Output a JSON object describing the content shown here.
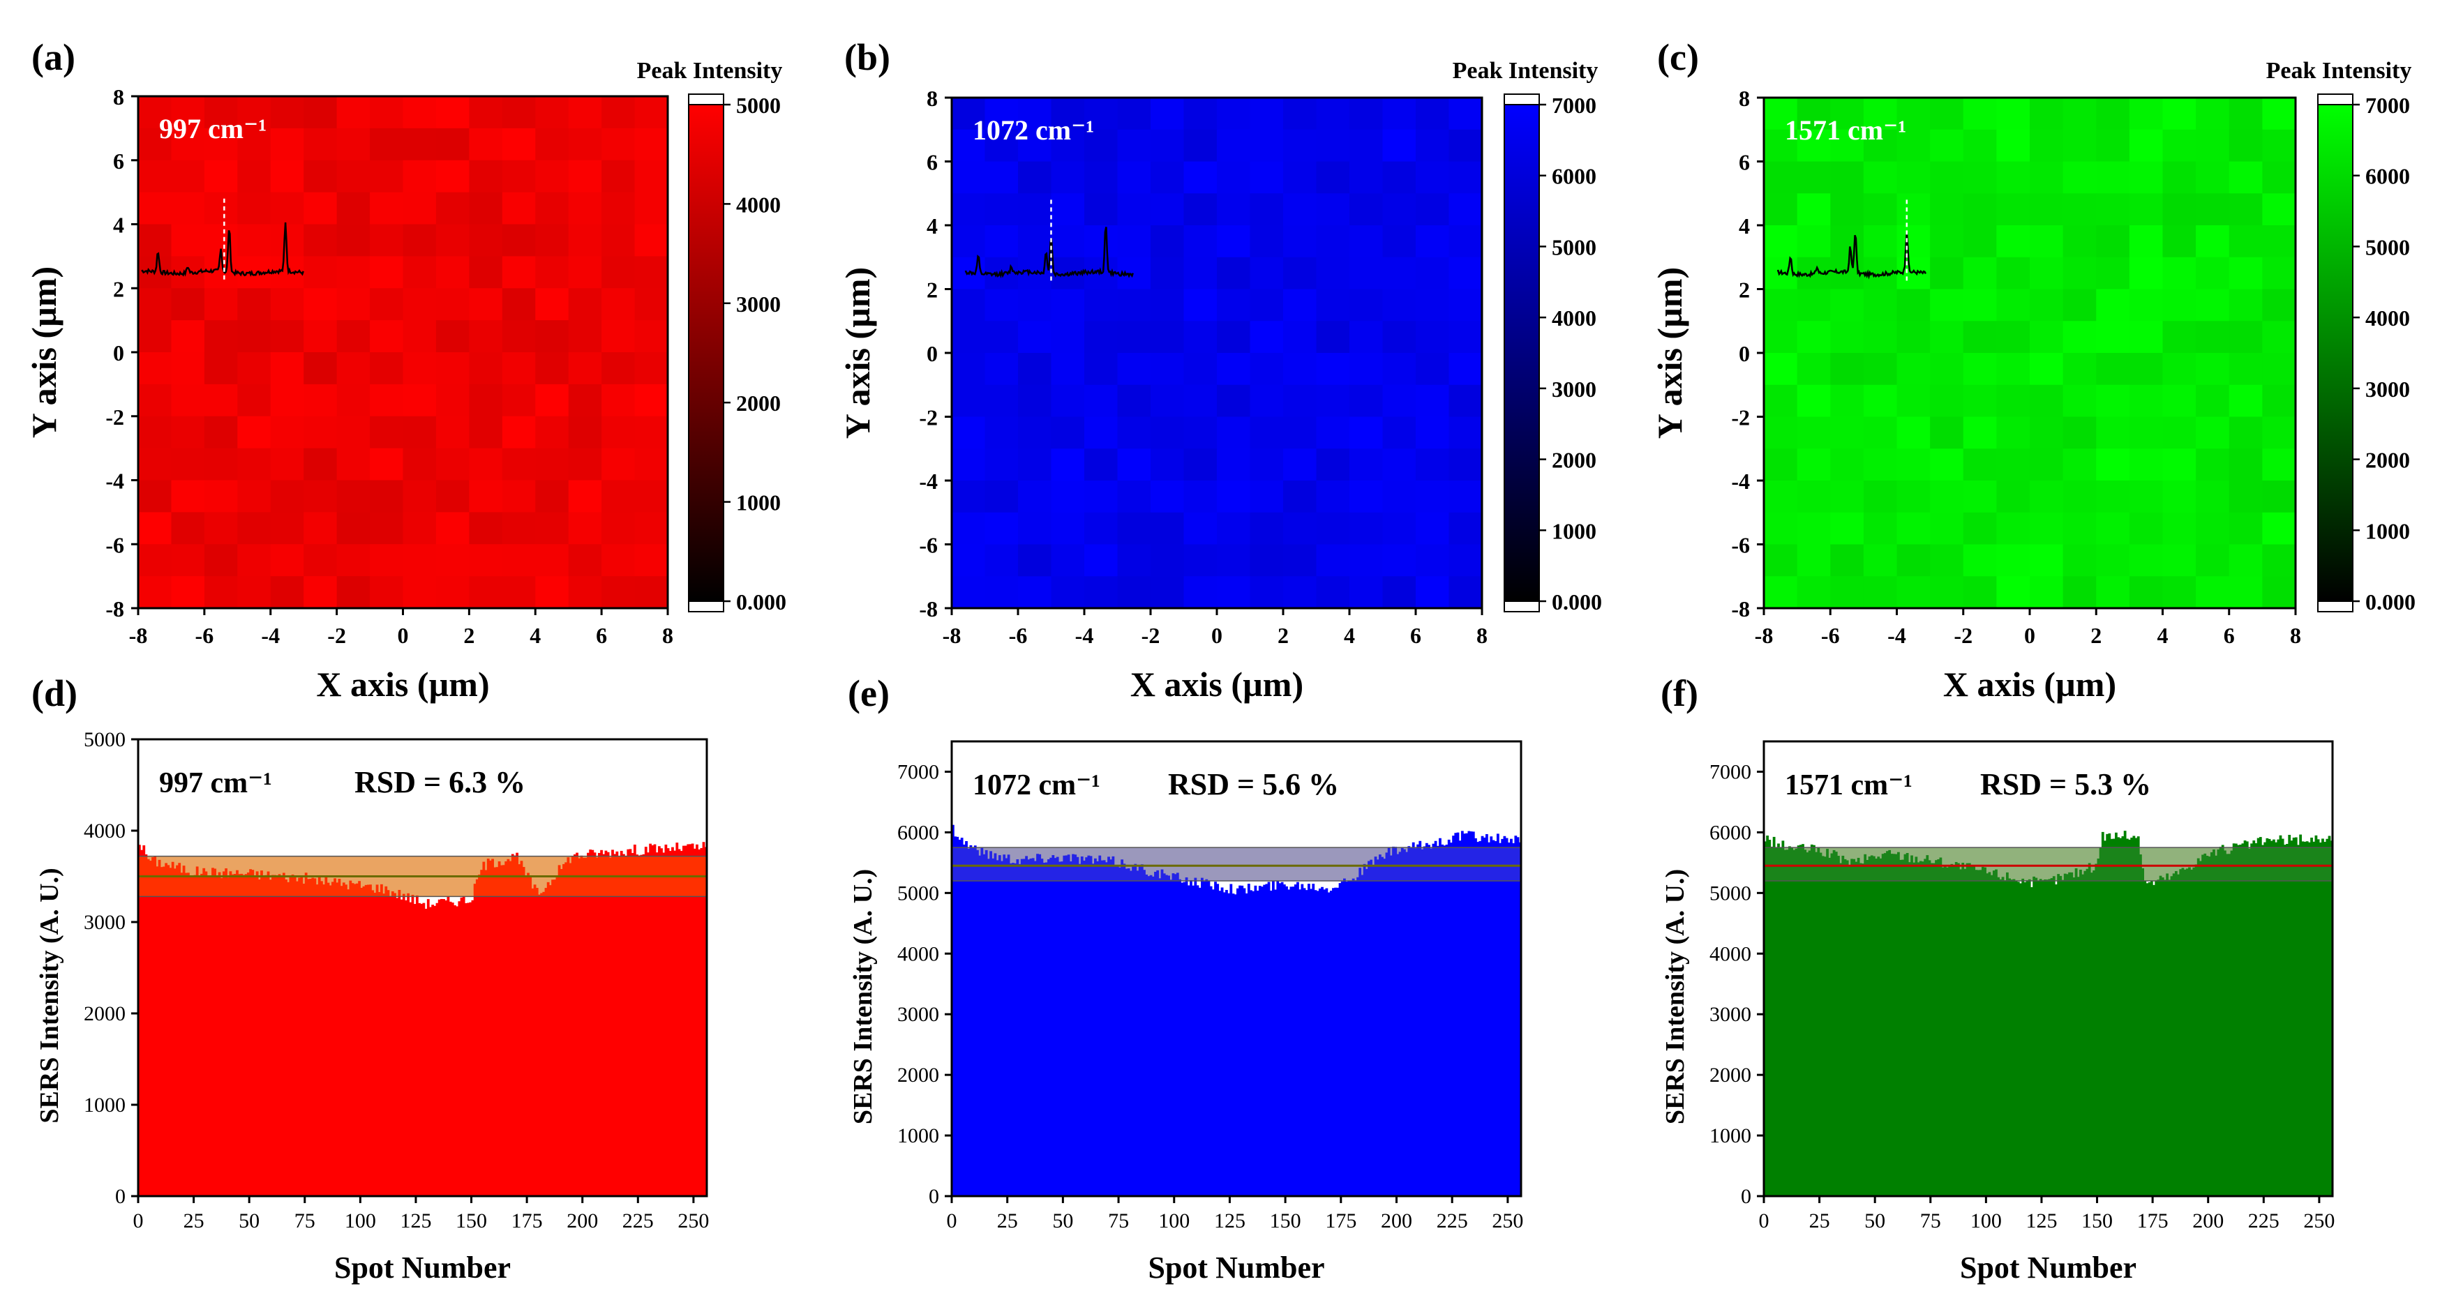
{
  "figure": {
    "maps": {
      "x_axis_label": "X axis (µm)",
      "y_axis_label": "Y axis (µm)",
      "colorbar_title": "Peak Intensity",
      "axis_ticks": [
        "-8",
        "-6",
        "-4",
        "-2",
        "0",
        "2",
        "4",
        "6",
        "8"
      ]
    },
    "bars": {
      "x_axis_label": "Spot Number",
      "y_axis_label": "SERS Intensity (A. U.)",
      "x_ticks": [
        "0",
        "25",
        "50",
        "75",
        "100",
        "125",
        "150",
        "175",
        "200",
        "225",
        "250"
      ]
    }
  },
  "chart_data": [
    {
      "panel": "(a)",
      "type": "heatmap",
      "wavenumber_label": "997 cm⁻¹",
      "color": "#ff0000",
      "vmin": 0,
      "vmax": 5000,
      "colorbar_ticks": [
        "0.000",
        "1000",
        "2000",
        "3000",
        "4000",
        "5000"
      ],
      "xlim": [
        -8,
        8
      ],
      "ylim": [
        -8,
        8
      ],
      "grid_size": 16,
      "typical_intensity": 4600,
      "inset": "Raman spectrum with dashed marker at 997 cm⁻¹"
    },
    {
      "panel": "(b)",
      "type": "heatmap",
      "wavenumber_label": "1072 cm⁻¹",
      "color": "#0000ff",
      "vmin": 0,
      "vmax": 7000,
      "colorbar_ticks": [
        "0.000",
        "1000",
        "2000",
        "3000",
        "4000",
        "5000",
        "6000",
        "7000"
      ],
      "xlim": [
        -8,
        8
      ],
      "ylim": [
        -8,
        8
      ],
      "grid_size": 16,
      "typical_intensity": 6500,
      "inset": "Raman spectrum with dashed marker at 1072 cm⁻¹"
    },
    {
      "panel": "(c)",
      "type": "heatmap",
      "wavenumber_label": "1571 cm⁻¹",
      "color": "#00ff00",
      "vmin": 0,
      "vmax": 7000,
      "colorbar_ticks": [
        "0.000",
        "1000",
        "2000",
        "3000",
        "4000",
        "5000",
        "6000",
        "7000"
      ],
      "xlim": [
        -8,
        8
      ],
      "ylim": [
        -8,
        8
      ],
      "grid_size": 16,
      "typical_intensity": 6300,
      "inset": "Raman spectrum with dashed marker at 1571 cm⁻¹"
    },
    {
      "panel": "(d)",
      "type": "bar",
      "wavenumber_label": "997 cm⁻¹",
      "rsd_label": "RSD = 6.3 %",
      "color": "#ff0000",
      "band_color": "#ff6a00",
      "mean_line_color": "#6b6b00",
      "xlim": [
        0,
        256
      ],
      "ylim": [
        0,
        5000
      ],
      "y_ticks": [
        "0",
        "1000",
        "2000",
        "3000",
        "4000",
        "5000"
      ],
      "mean": 3500,
      "std_band": [
        3280,
        3720
      ],
      "profile_spot": [
        0,
        5,
        10,
        25,
        50,
        75,
        90,
        110,
        130,
        150,
        155,
        170,
        180,
        195,
        210,
        230,
        256
      ],
      "profile_value": [
        3900,
        3680,
        3650,
        3550,
        3530,
        3480,
        3430,
        3370,
        3200,
        3250,
        3620,
        3720,
        3300,
        3720,
        3760,
        3800,
        3820
      ]
    },
    {
      "panel": "(e)",
      "type": "bar",
      "wavenumber_label": "1072 cm⁻¹",
      "rsd_label": "RSD = 5.6 %",
      "color": "#0000ff",
      "band_color": "#5050c8",
      "mean_line_color": "#6b6b00",
      "xlim": [
        0,
        256
      ],
      "ylim": [
        0,
        7500
      ],
      "y_ticks": [
        "0",
        "1000",
        "2000",
        "3000",
        "4000",
        "5000",
        "6000",
        "7000"
      ],
      "mean": 5450,
      "std_band": [
        5200,
        5750
      ],
      "profile_spot": [
        0,
        5,
        15,
        30,
        50,
        75,
        100,
        130,
        150,
        170,
        180,
        195,
        215,
        230,
        256
      ],
      "profile_value": [
        6100,
        5850,
        5650,
        5550,
        5600,
        5500,
        5250,
        5050,
        5150,
        5100,
        5250,
        5650,
        5800,
        5950,
        5850
      ]
    },
    {
      "panel": "(f)",
      "type": "bar",
      "wavenumber_label": "1571 cm⁻¹",
      "rsd_label": "RSD = 5.3 %",
      "color": "#008000",
      "band_color": "#3a8a3a",
      "mean_line_color": "#cc0000",
      "xlim": [
        0,
        256
      ],
      "ylim": [
        0,
        7500
      ],
      "y_ticks": [
        "0",
        "1000",
        "2000",
        "3000",
        "4000",
        "5000",
        "6000",
        "7000"
      ],
      "mean": 5450,
      "std_band": [
        5200,
        5750
      ],
      "profile_spot": [
        0,
        10,
        25,
        40,
        55,
        75,
        100,
        125,
        150,
        152,
        168,
        172,
        185,
        200,
        225,
        256
      ],
      "profile_value": [
        5900,
        5750,
        5700,
        5500,
        5650,
        5550,
        5350,
        5150,
        5450,
        5950,
        5950,
        5150,
        5300,
        5650,
        5850,
        5900
      ]
    }
  ]
}
